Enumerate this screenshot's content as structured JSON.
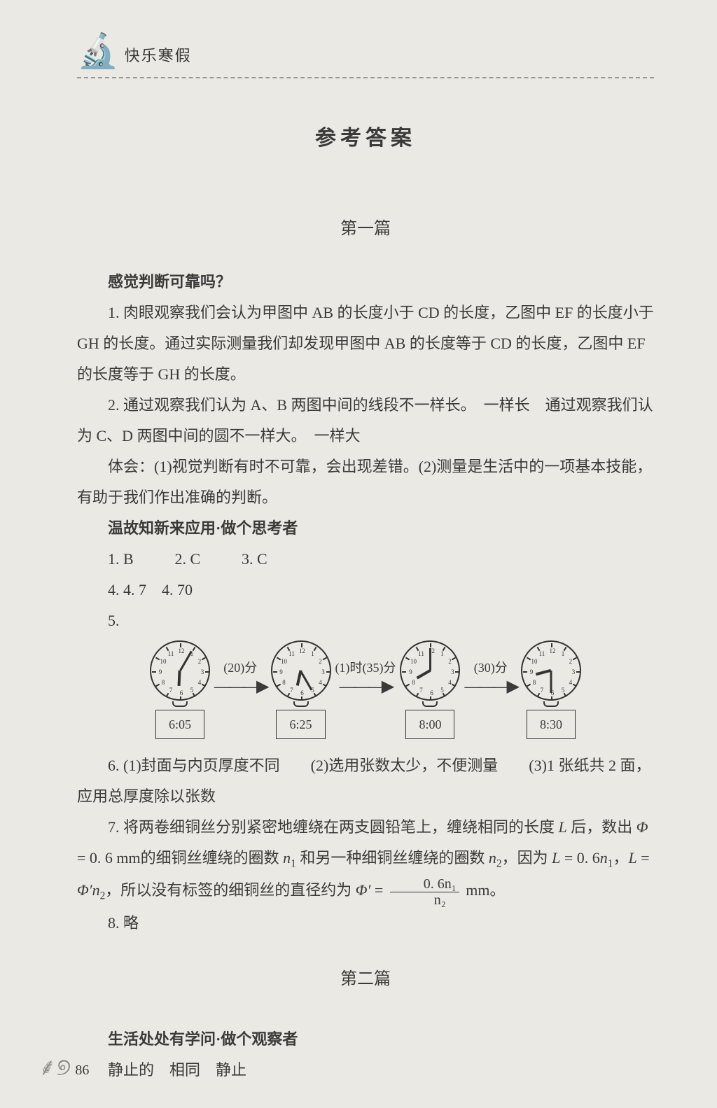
{
  "header": {
    "title": "快乐寒假"
  },
  "main_title": "参考答案",
  "section1": {
    "title": "第一篇",
    "heading1": "感觉判断可靠吗？",
    "p1": "1. 肉眼观察我们会认为甲图中 AB 的长度小于 CD 的长度，乙图中 EF 的长度小于 GH 的长度。通过实际测量我们却发现甲图中 AB 的长度等于 CD 的长度，乙图中 EF 的长度等于 GH 的长度。",
    "p2": "2. 通过观察我们认为 A、B 两图中间的线段不一样长。　一样长　通过观察我们认为 C、D 两图中间的圆不一样大。　一样大",
    "p3": "体会：(1)视觉判断有时不可靠，会出现差错。(2)测量是生活中的一项基本技能，有助于我们作出准确的判断。",
    "heading2": "温故知新来应用·做个思考者",
    "mc": [
      "1. B",
      "2. C",
      "3. C"
    ],
    "q4": "4. 4. 7　4. 70",
    "q5": "5.",
    "q6": "6. (1)封面与内页厚度不同　　(2)选用张数太少，不便测量　　(3)1 张纸共 2 面，应用总厚度除以张数",
    "q7_pre": "7. 将两卷细铜丝分别紧密地缠绕在两支圆铅笔上，缠绕相同的长度 ",
    "q7_L": "L",
    "q7_a": " 后，数出 ",
    "q7_phi": "Φ",
    "q7_b": " = 0. 6 mm的细铜丝缠绕的圈数 ",
    "q7_n1": "n",
    "q7_c": " 和另一种细铜丝缠绕的圈数 ",
    "q7_n2": "n",
    "q7_d": "，因为 ",
    "q7_e": " = 0. 6",
    "q7_f": "，",
    "q7_g": " = ",
    "q7_phi2": "Φ′",
    "q7_h": "，所以没有标签的细铜丝的直径约为 ",
    "q7_i": " = ",
    "q7_frac_top": "0. 6n₁",
    "q7_frac_bot": "n₂",
    "q7_tail": " mm。",
    "q8": "8. 略"
  },
  "section2": {
    "title": "第二篇",
    "heading1": "生活处处有学问·做个观察者",
    "p1": "静止的　相同　静止"
  },
  "clocks": {
    "clock_data": [
      {
        "time": "6:05",
        "hour_angle": 182.5,
        "minute_angle": 30
      },
      {
        "time": "6:25",
        "hour_angle": 192.5,
        "minute_angle": 150
      },
      {
        "time": "8:00",
        "hour_angle": 240,
        "minute_angle": 0
      },
      {
        "time": "8:30",
        "hour_angle": 255,
        "minute_angle": 180
      }
    ],
    "arrows": [
      "(20)分",
      "(1)时(35)分",
      "(30)分"
    ],
    "tick_count": 12,
    "face_radius": 43,
    "num_radius": 30,
    "colors": {
      "line": "#333333",
      "bg": "#ebe9e4"
    }
  },
  "page_number": "86"
}
